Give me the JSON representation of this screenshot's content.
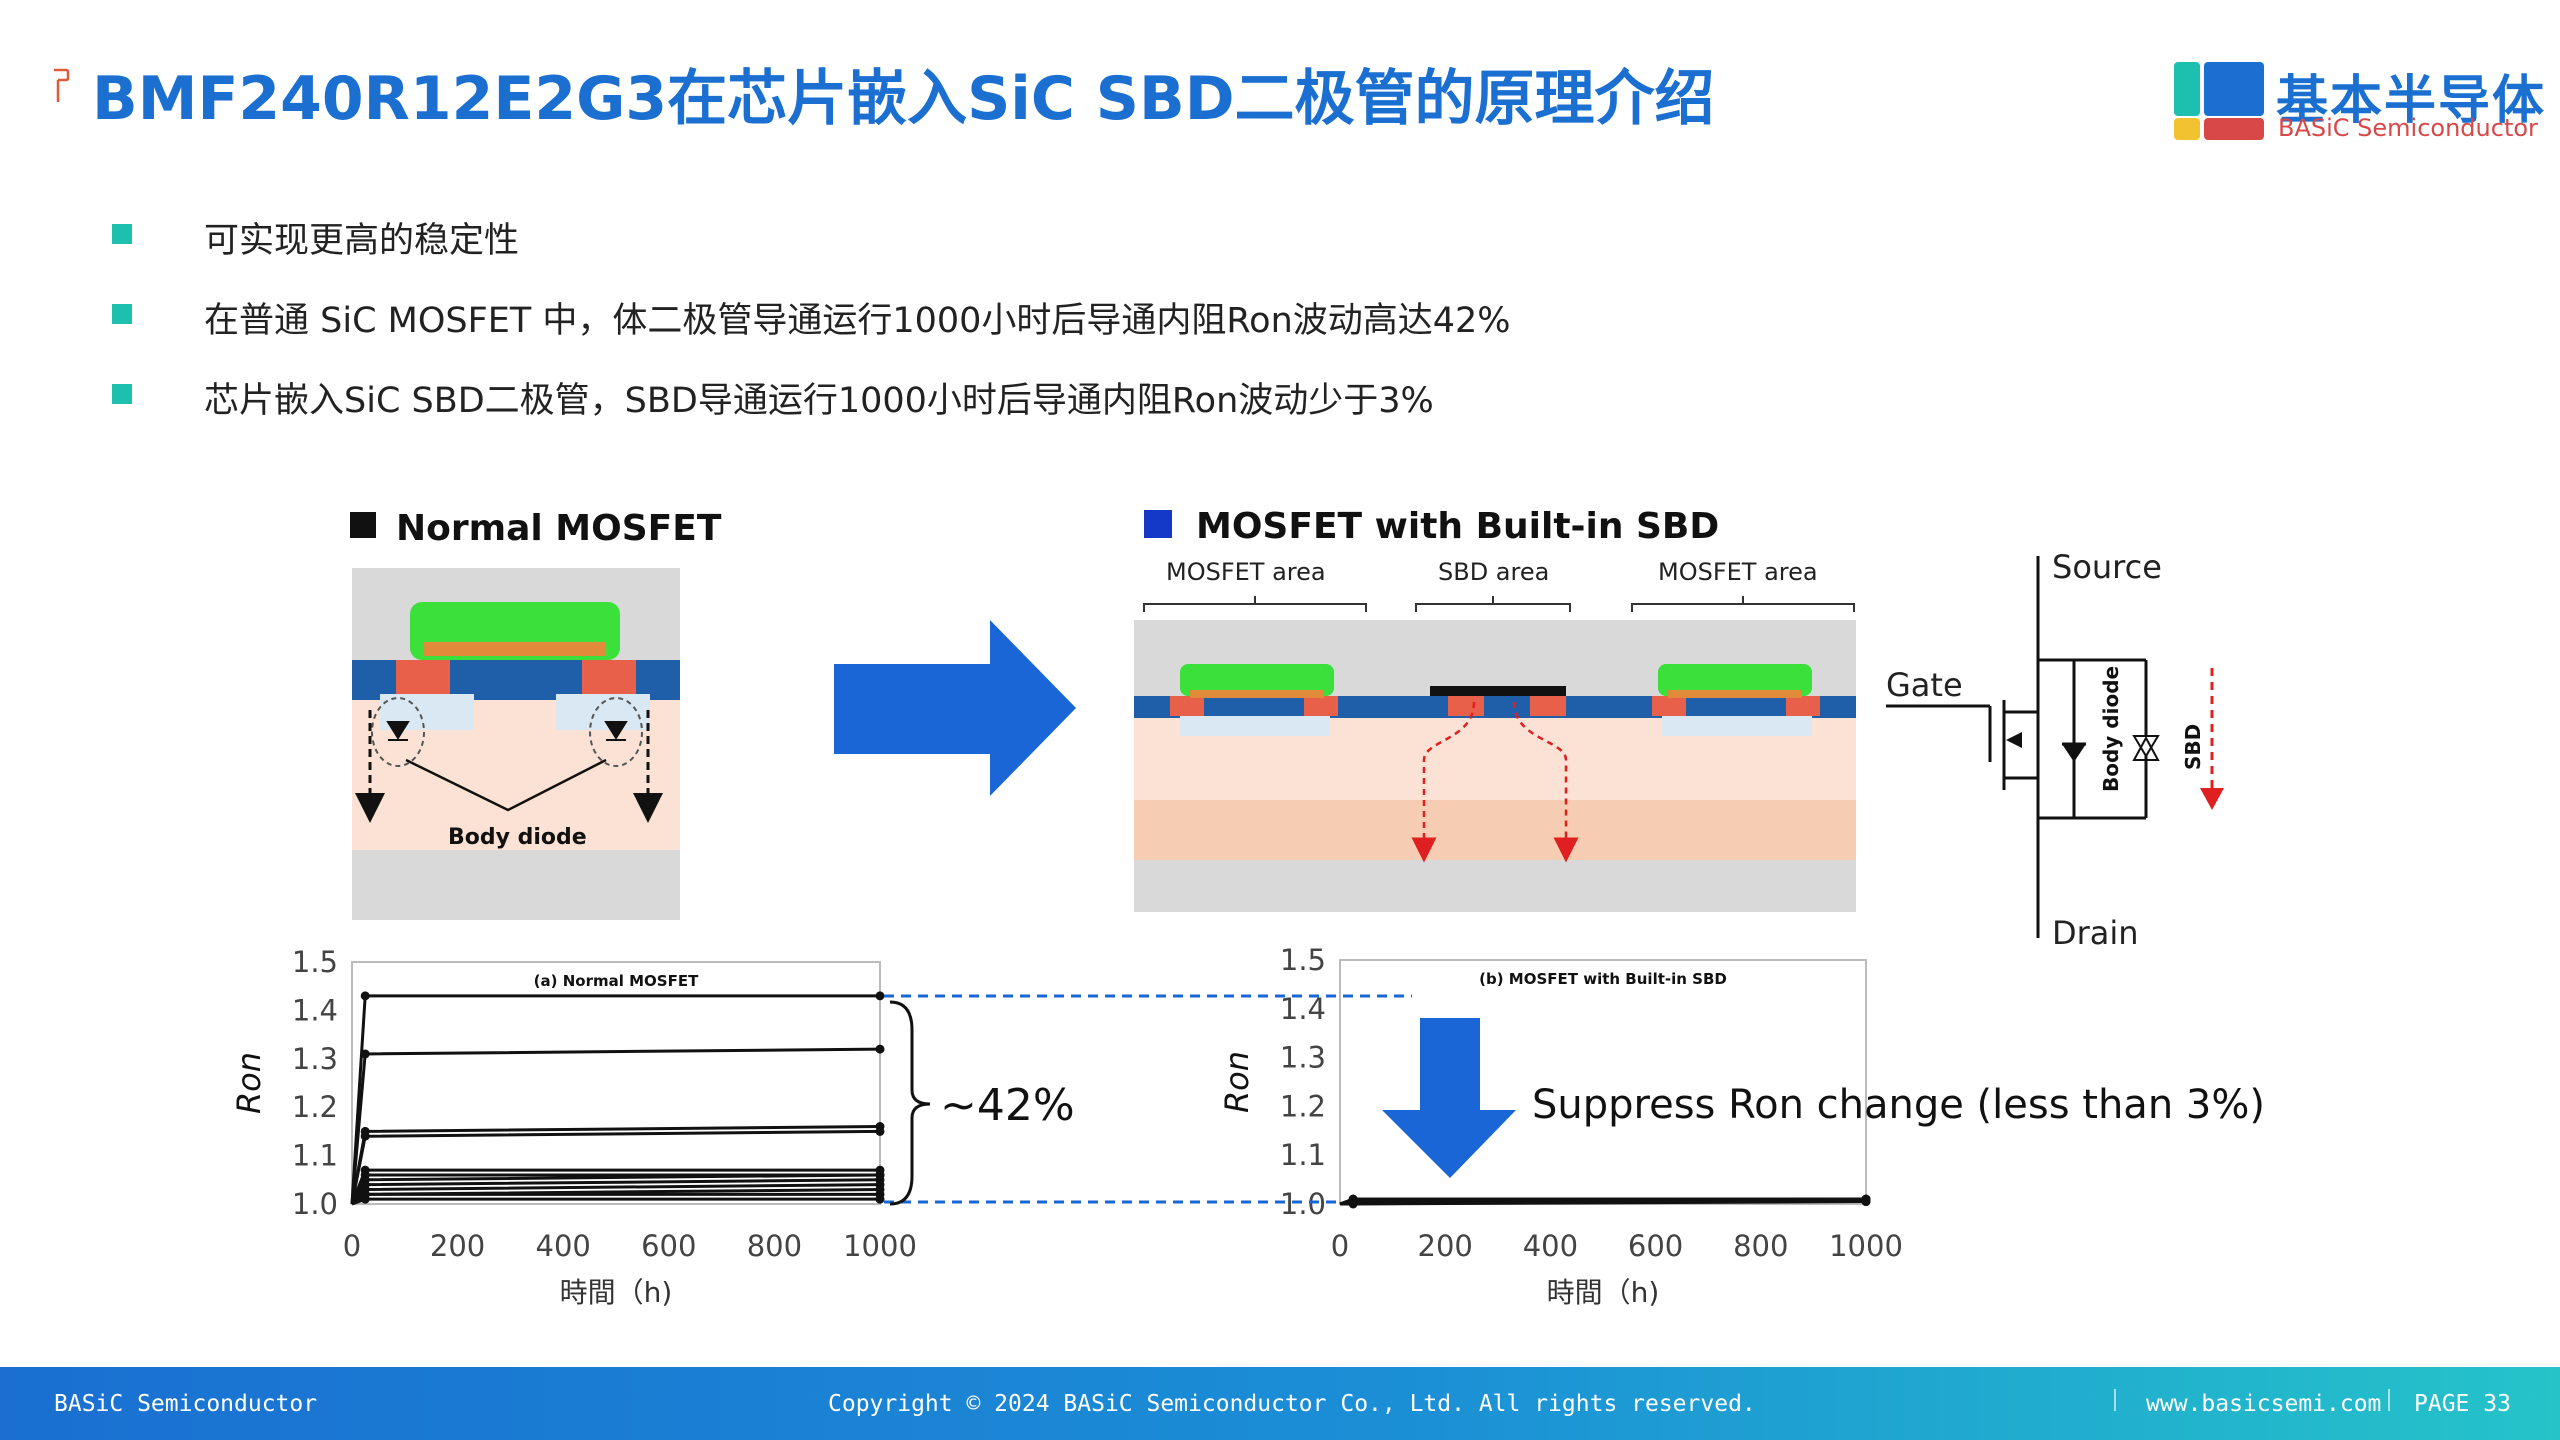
{
  "header": {
    "title": "BMF240R12E2G3在芯片嵌入SiC SBD二极管的原理介绍"
  },
  "logo": {
    "name_cn": "基本半导体",
    "name_en": "BASiC Semiconductor",
    "colors": [
      "#1dbfae",
      "#1a6fd1",
      "#f2c230",
      "#d94848"
    ]
  },
  "bullets": [
    "可实现更高的稳定性",
    "在普通 SiC MOSFET 中，体二极管导通运行1000小时后导通内阻Ron波动高达42%",
    "芯片嵌入SiC SBD二极管，SBD导通运行1000小时后导通内阻Ron波动少于3%"
  ],
  "figure": {
    "normal_title": "Normal MOSFET",
    "body_diode_label": "Body diode",
    "builtin_title": "MOSFET with Built-in SBD",
    "area_labels": [
      "MOSFET area",
      "SBD area",
      "MOSFET area"
    ],
    "circuit": {
      "source": "Source",
      "gate": "Gate",
      "drain": "Drain",
      "body_diode": "Body diode",
      "sbd": "SBD"
    },
    "change_label": "~42%",
    "suppress_text": "Suppress Ron change (less than 3%)"
  },
  "chart_data": [
    {
      "type": "line",
      "title": "(a) Normal MOSFET",
      "xlabel": "時間（h)",
      "ylabel": "Ron",
      "xlim": [
        0,
        1000
      ],
      "ylim": [
        1.0,
        1.5
      ],
      "xticks": [
        0,
        200,
        400,
        600,
        800,
        1000
      ],
      "yticks": [
        1.0,
        1.1,
        1.2,
        1.3,
        1.4,
        1.5
      ],
      "x": [
        0,
        25,
        1000
      ],
      "series": [
        {
          "values": [
            1.0,
            1.43,
            1.43
          ]
        },
        {
          "values": [
            1.0,
            1.31,
            1.32
          ]
        },
        {
          "values": [
            1.0,
            1.15,
            1.16
          ]
        },
        {
          "values": [
            1.0,
            1.14,
            1.15
          ]
        },
        {
          "values": [
            1.0,
            1.07,
            1.07
          ]
        },
        {
          "values": [
            1.0,
            1.06,
            1.06
          ]
        },
        {
          "values": [
            1.0,
            1.05,
            1.06
          ]
        },
        {
          "values": [
            1.0,
            1.04,
            1.05
          ]
        },
        {
          "values": [
            1.0,
            1.03,
            1.04
          ]
        },
        {
          "values": [
            1.0,
            1.02,
            1.03
          ]
        },
        {
          "values": [
            1.0,
            1.02,
            1.02
          ]
        },
        {
          "values": [
            1.0,
            1.01,
            1.01
          ]
        }
      ]
    },
    {
      "type": "line",
      "title": "(b) MOSFET with Built-in SBD",
      "xlabel": "時間（h)",
      "ylabel": "Ron",
      "xlim": [
        0,
        1000
      ],
      "ylim": [
        1.0,
        1.5
      ],
      "xticks": [
        0,
        200,
        400,
        600,
        800,
        1000
      ],
      "yticks": [
        1.0,
        1.1,
        1.2,
        1.3,
        1.4,
        1.5
      ],
      "x": [
        0,
        25,
        1000
      ],
      "series": [
        {
          "values": [
            1.0,
            1.01,
            1.01
          ]
        },
        {
          "values": [
            1.0,
            1.01,
            1.01
          ]
        },
        {
          "values": [
            1.0,
            1.005,
            1.01
          ]
        },
        {
          "values": [
            1.0,
            1.005,
            1.005
          ]
        },
        {
          "values": [
            1.0,
            1.0,
            1.005
          ]
        }
      ]
    }
  ],
  "footer": {
    "company": "BASiC Semiconductor",
    "copyright": "Copyright © 2024 BASiC Semiconductor Co., Ltd. All rights reserved.",
    "website": "www.basicsemi.com",
    "page": "PAGE 33"
  }
}
